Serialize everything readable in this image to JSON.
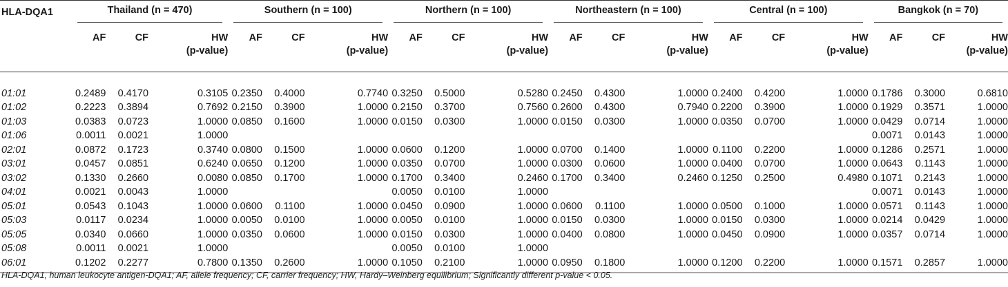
{
  "table": {
    "corner_header": "HLA-DQA1",
    "groups": [
      {
        "label": "Thailand (n = 470)"
      },
      {
        "label": "Southern (n = 100)"
      },
      {
        "label": "Northern (n = 100)"
      },
      {
        "label": "Northeastern (n = 100)"
      },
      {
        "label": "Central (n = 100)"
      },
      {
        "label": "Bangkok (n = 70)"
      }
    ],
    "subheaders": {
      "af": "AF",
      "cf": "CF",
      "hw_line1": "HW",
      "hw_line2": "(p-value)"
    },
    "rows": [
      {
        "allele": "01:01",
        "values": [
          "0.2489",
          "0.4170",
          "0.3105",
          "0.2350",
          "0.4000",
          "0.7740",
          "0.3250",
          "0.5000",
          "0.5280",
          "0.2450",
          "0.4300",
          "1.0000",
          "0.2400",
          "0.4200",
          "1.0000",
          "0.1786",
          "0.3000",
          "0.6810"
        ]
      },
      {
        "allele": "01:02",
        "values": [
          "0.2223",
          "0.3894",
          "0.7692",
          "0.2150",
          "0.3900",
          "1.0000",
          "0.2150",
          "0.3700",
          "0.7560",
          "0.2600",
          "0.4300",
          "0.7940",
          "0.2200",
          "0.3900",
          "1.0000",
          "0.1929",
          "0.3571",
          "1.0000"
        ]
      },
      {
        "allele": "01:03",
        "values": [
          "0.0383",
          "0.0723",
          "1.0000",
          "0.0850",
          "0.1600",
          "1.0000",
          "0.0150",
          "0.0300",
          "1.0000",
          "0.0150",
          "0.0300",
          "1.0000",
          "0.0350",
          "0.0700",
          "1.0000",
          "0.0429",
          "0.0714",
          "1.0000"
        ]
      },
      {
        "allele": "01:06",
        "values": [
          "0.0011",
          "0.0021",
          "1.0000",
          "",
          "",
          "",
          "",
          "",
          "",
          "",
          "",
          "",
          "",
          "",
          "",
          "0.0071",
          "0.0143",
          "1.0000"
        ]
      },
      {
        "allele": "02:01",
        "values": [
          "0.0872",
          "0.1723",
          "0.3740",
          "0.0800",
          "0.1500",
          "1.0000",
          "0.0600",
          "0.1200",
          "1.0000",
          "0.0700",
          "0.1400",
          "1.0000",
          "0.1100",
          "0.2200",
          "1.0000",
          "0.1286",
          "0.2571",
          "1.0000"
        ]
      },
      {
        "allele": "03:01",
        "values": [
          "0.0457",
          "0.0851",
          "0.6240",
          "0.0650",
          "0.1200",
          "1.0000",
          "0.0350",
          "0.0700",
          "1.0000",
          "0.0300",
          "0.0600",
          "1.0000",
          "0.0400",
          "0.0700",
          "1.0000",
          "0.0643",
          "0.1143",
          "1.0000"
        ]
      },
      {
        "allele": "03:02",
        "values": [
          "0.1330",
          "0.2660",
          "0.0080",
          "0.0850",
          "0.1700",
          "1.0000",
          "0.1700",
          "0.3400",
          "0.2460",
          "0.1700",
          "0.3400",
          "0.2460",
          "0.1250",
          "0.2500",
          "0.4980",
          "0.1071",
          "0.2143",
          "1.0000"
        ]
      },
      {
        "allele": "04:01",
        "values": [
          "0.0021",
          "0.0043",
          "1.0000",
          "",
          "",
          "",
          "0.0050",
          "0.0100",
          "1.0000",
          "",
          "",
          "",
          "",
          "",
          "",
          "0.0071",
          "0.0143",
          "1.0000"
        ]
      },
      {
        "allele": "05:01",
        "values": [
          "0.0543",
          "0.1043",
          "1.0000",
          "0.0600",
          "0.1100",
          "1.0000",
          "0.0450",
          "0.0900",
          "1.0000",
          "0.0600",
          "0.1100",
          "1.0000",
          "0.0500",
          "0.1000",
          "1.0000",
          "0.0571",
          "0.1143",
          "1.0000"
        ]
      },
      {
        "allele": "05:03",
        "values": [
          "0.0117",
          "0.0234",
          "1.0000",
          "0.0050",
          "0.0100",
          "1.0000",
          "0.0050",
          "0.0100",
          "1.0000",
          "0.0150",
          "0.0300",
          "1.0000",
          "0.0150",
          "0.0300",
          "1.0000",
          "0.0214",
          "0.0429",
          "1.0000"
        ]
      },
      {
        "allele": "05:05",
        "values": [
          "0.0340",
          "0.0660",
          "1.0000",
          "0.0350",
          "0.0600",
          "1.0000",
          "0.0150",
          "0.0300",
          "1.0000",
          "0.0400",
          "0.0800",
          "1.0000",
          "0.0450",
          "0.0900",
          "1.0000",
          "0.0357",
          "0.0714",
          "1.0000"
        ]
      },
      {
        "allele": "05:08",
        "values": [
          "0.0011",
          "0.0021",
          "1.0000",
          "",
          "",
          "",
          "0.0050",
          "0.0100",
          "1.0000",
          "",
          "",
          "",
          "",
          "",
          "",
          "",
          "",
          ""
        ]
      },
      {
        "allele": "06:01",
        "values": [
          "0.1202",
          "0.2277",
          "0.7800",
          "0.1350",
          "0.2600",
          "1.0000",
          "0.1050",
          "0.2100",
          "1.0000",
          "0.0950",
          "0.1800",
          "1.0000",
          "0.1200",
          "0.2200",
          "1.0000",
          "0.1571",
          "0.2857",
          "1.0000"
        ]
      }
    ]
  },
  "footnote": "HLA-DQA1, human leukocyte antigen-DQA1; AF, allele frequency; CF, carrier frequency; HW, Hardy–Weinberg equilibrium; Significantly different p-value < 0.05."
}
